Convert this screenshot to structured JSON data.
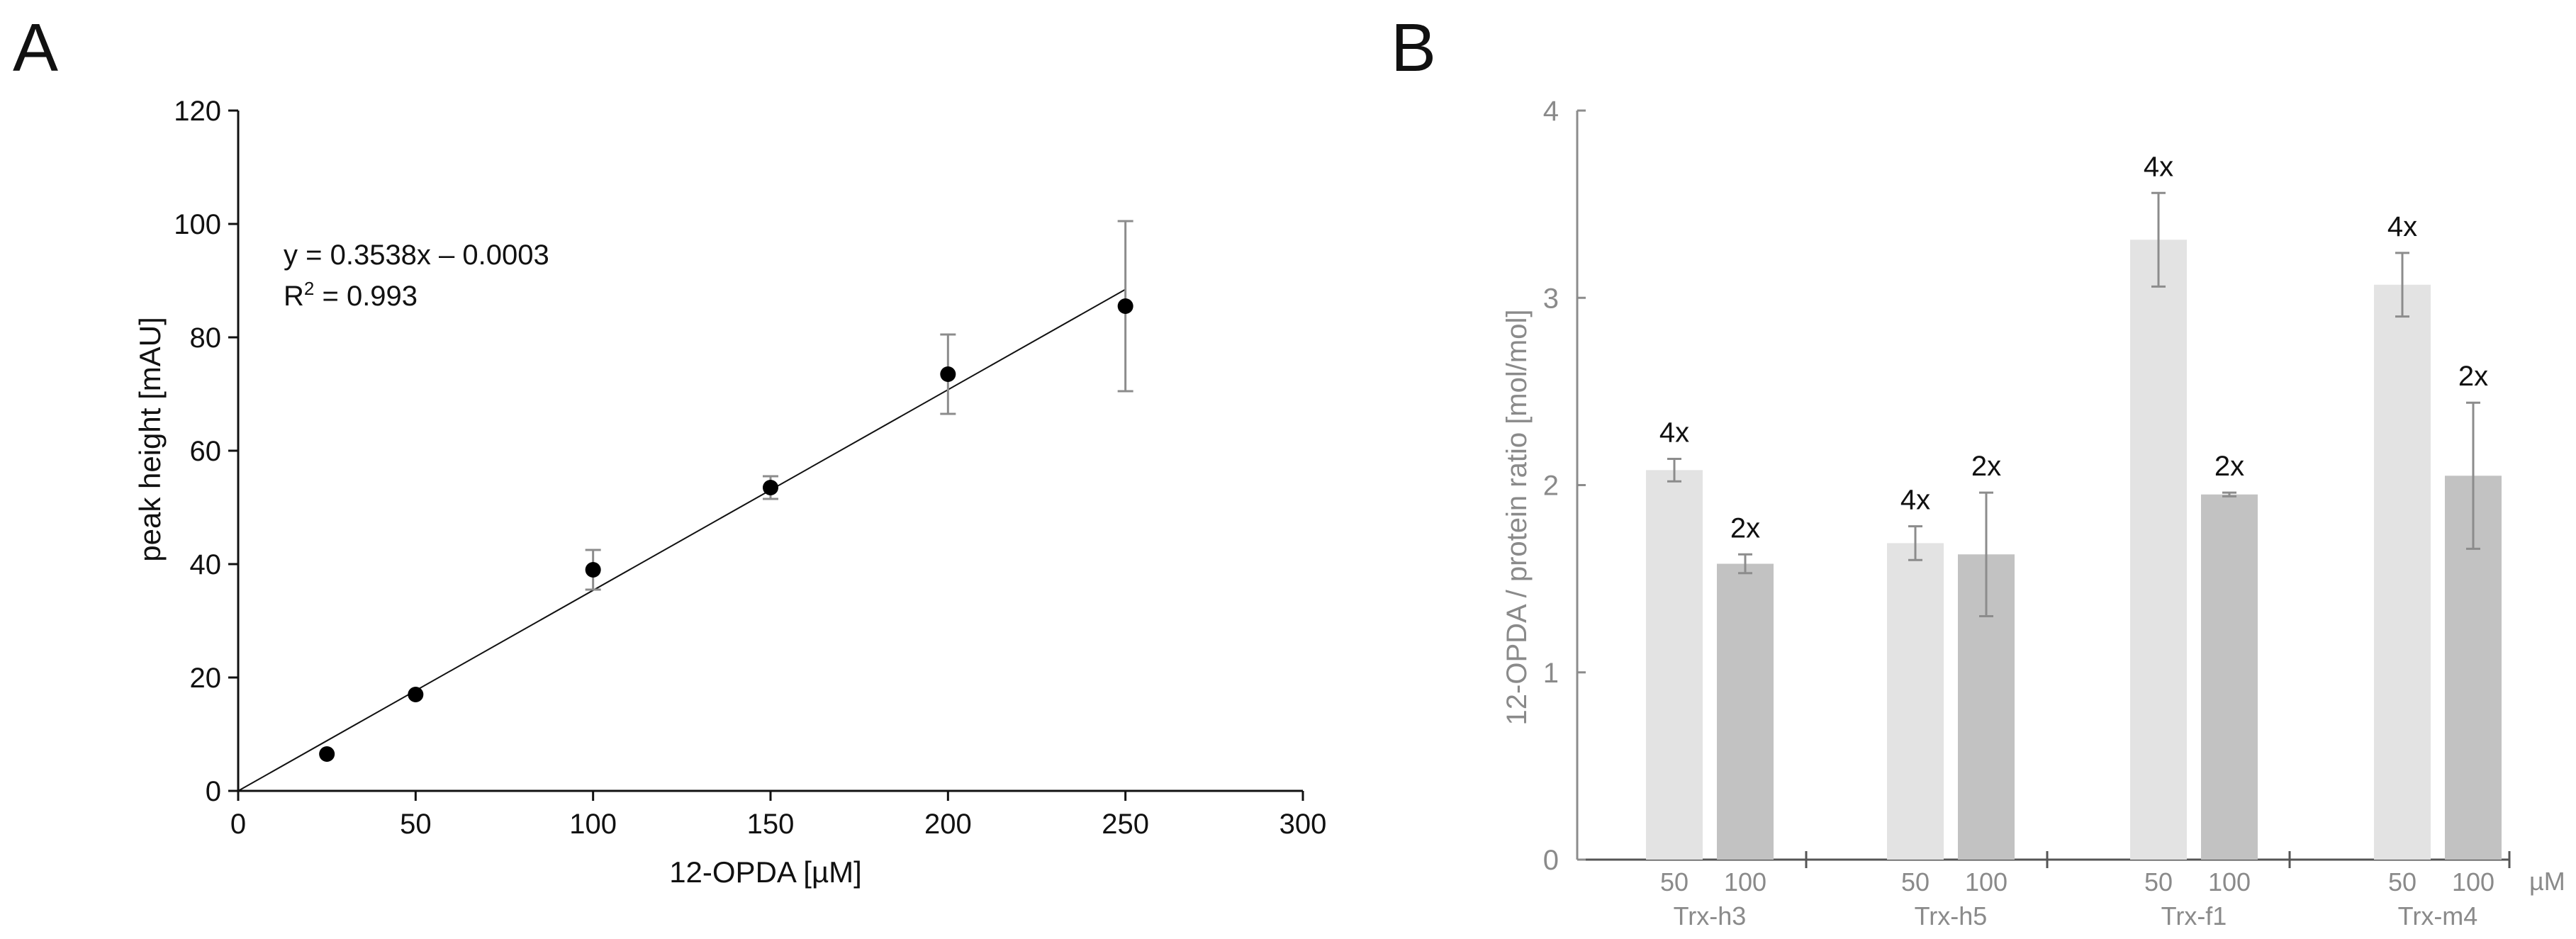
{
  "chart_data": [
    {
      "panel": "A",
      "type": "scatter",
      "xlabel": "12-OPDA [µM]",
      "ylabel": "peak height [mAU]",
      "xlim": [
        0,
        300
      ],
      "ylim": [
        0,
        120
      ],
      "x_ticks": [
        "0",
        "50",
        "100",
        "150",
        "200",
        "250",
        "300"
      ],
      "y_ticks": [
        "0",
        "20",
        "40",
        "60",
        "80",
        "100",
        "120"
      ],
      "points": [
        {
          "x": 25,
          "y": 6.5,
          "err": 0
        },
        {
          "x": 50,
          "y": 17,
          "err": 0
        },
        {
          "x": 100,
          "y": 39,
          "err": 3.5
        },
        {
          "x": 150,
          "y": 53.5,
          "err": 2
        },
        {
          "x": 200,
          "y": 73.5,
          "err": 7
        },
        {
          "x": 250,
          "y": 85.5,
          "err": 15
        }
      ],
      "fit": {
        "slope": 0.3538,
        "intercept": -0.0003,
        "x_range": [
          0,
          250
        ]
      },
      "annotations": {
        "equation": "y = 0.3538x – 0.0003",
        "r2_prefix": "R",
        "r2_exp": "2",
        "r2_value": " = 0.993"
      }
    },
    {
      "panel": "B",
      "type": "bar",
      "ylabel": "12-OPDA / protein ratio [mol/mol]",
      "ylim": [
        0,
        4
      ],
      "y_ticks": [
        "0",
        "1",
        "2",
        "3",
        "4"
      ],
      "unit_label": "µM",
      "series": [
        {
          "name": "50",
          "color": "#e3e3e3"
        },
        {
          "name": "100",
          "color": "#c2c2c2"
        }
      ],
      "groups": [
        {
          "name": "Trx-h3",
          "bars": [
            {
              "concentration": "50",
              "value": 2.08,
              "err": 0.06,
              "label": "4x"
            },
            {
              "concentration": "100",
              "value": 1.58,
              "err": 0.05,
              "label": "2x"
            }
          ]
        },
        {
          "name": "Trx-h5",
          "bars": [
            {
              "concentration": "50",
              "value": 1.69,
              "err": 0.09,
              "label": "4x"
            },
            {
              "concentration": "100",
              "value": 1.63,
              "err": 0.33,
              "label": "2x"
            }
          ]
        },
        {
          "name": "Trx-f1",
          "bars": [
            {
              "concentration": "50",
              "value": 3.31,
              "err": 0.25,
              "label": "4x"
            },
            {
              "concentration": "100",
              "value": 1.95,
              "err": 0.01,
              "label": "2x"
            }
          ]
        },
        {
          "name": "Trx-m4",
          "bars": [
            {
              "concentration": "50",
              "value": 3.07,
              "err": 0.17,
              "label": "4x"
            },
            {
              "concentration": "100",
              "value": 2.05,
              "err": 0.39,
              "label": "2x"
            }
          ]
        }
      ]
    }
  ],
  "panels": {
    "a_label": "A",
    "b_label": "B"
  }
}
